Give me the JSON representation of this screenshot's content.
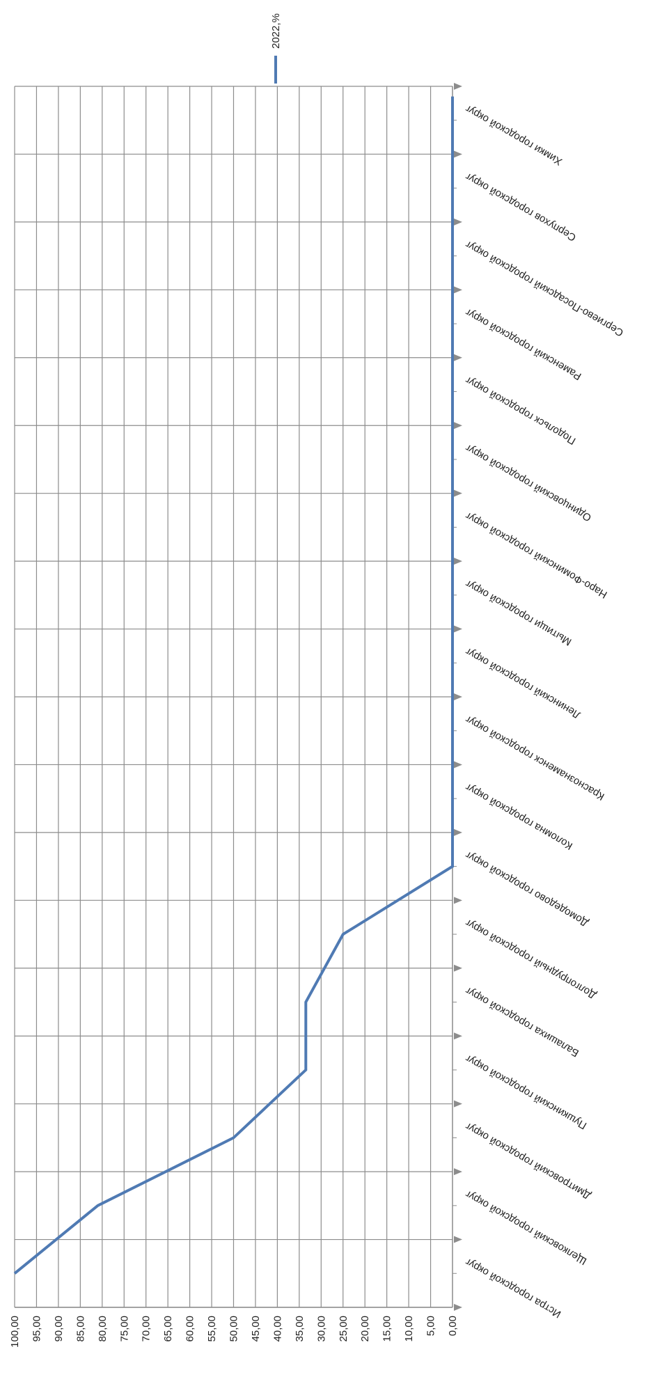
{
  "chart_data": {
    "type": "line",
    "orientation": "rotated-90",
    "title": "",
    "legend": {
      "position": "top",
      "entries": [
        "2022,%"
      ]
    },
    "xlabel": "",
    "ylabel": "",
    "grid": true,
    "ylim": [
      0,
      100
    ],
    "y_tick_step": 5,
    "y_tick_labels": [
      "100,00",
      "95,00",
      "90,00",
      "85,00",
      "80,00",
      "75,00",
      "70,00",
      "65,00",
      "60,00",
      "55,00",
      "50,00",
      "45,00",
      "40,00",
      "35,00",
      "30,00",
      "25,00",
      "20,00",
      "15,00",
      "10,00",
      "5,00",
      "0,00"
    ],
    "categories": [
      "Химки городской округ",
      "Серпухов городской округ",
      "Сергиево-Посадский городской округ",
      "Раменский городской округ",
      "Подольск городской округ",
      "Одинцовский городской округ",
      "Наро-Фоминский городской округ",
      "Мытищи городской округ",
      "Ленинский городской округ",
      "Краснознаменск городской округ",
      "Коломна городской округ",
      "Домодедово городской округ",
      "Долгопрудный городской округ",
      "Балашиха городской округ",
      "Пушкинский городской округ",
      "Дмитровский городской округ",
      "Щелковский городской округ",
      "Истра городской округ"
    ],
    "series": [
      {
        "name": "2022,%",
        "color": "#4f7ab3",
        "values": [
          0,
          0,
          0,
          0,
          0,
          0,
          0,
          0,
          0,
          0,
          0,
          0,
          25,
          33.5,
          33.5,
          50,
          81,
          100
        ]
      }
    ]
  }
}
